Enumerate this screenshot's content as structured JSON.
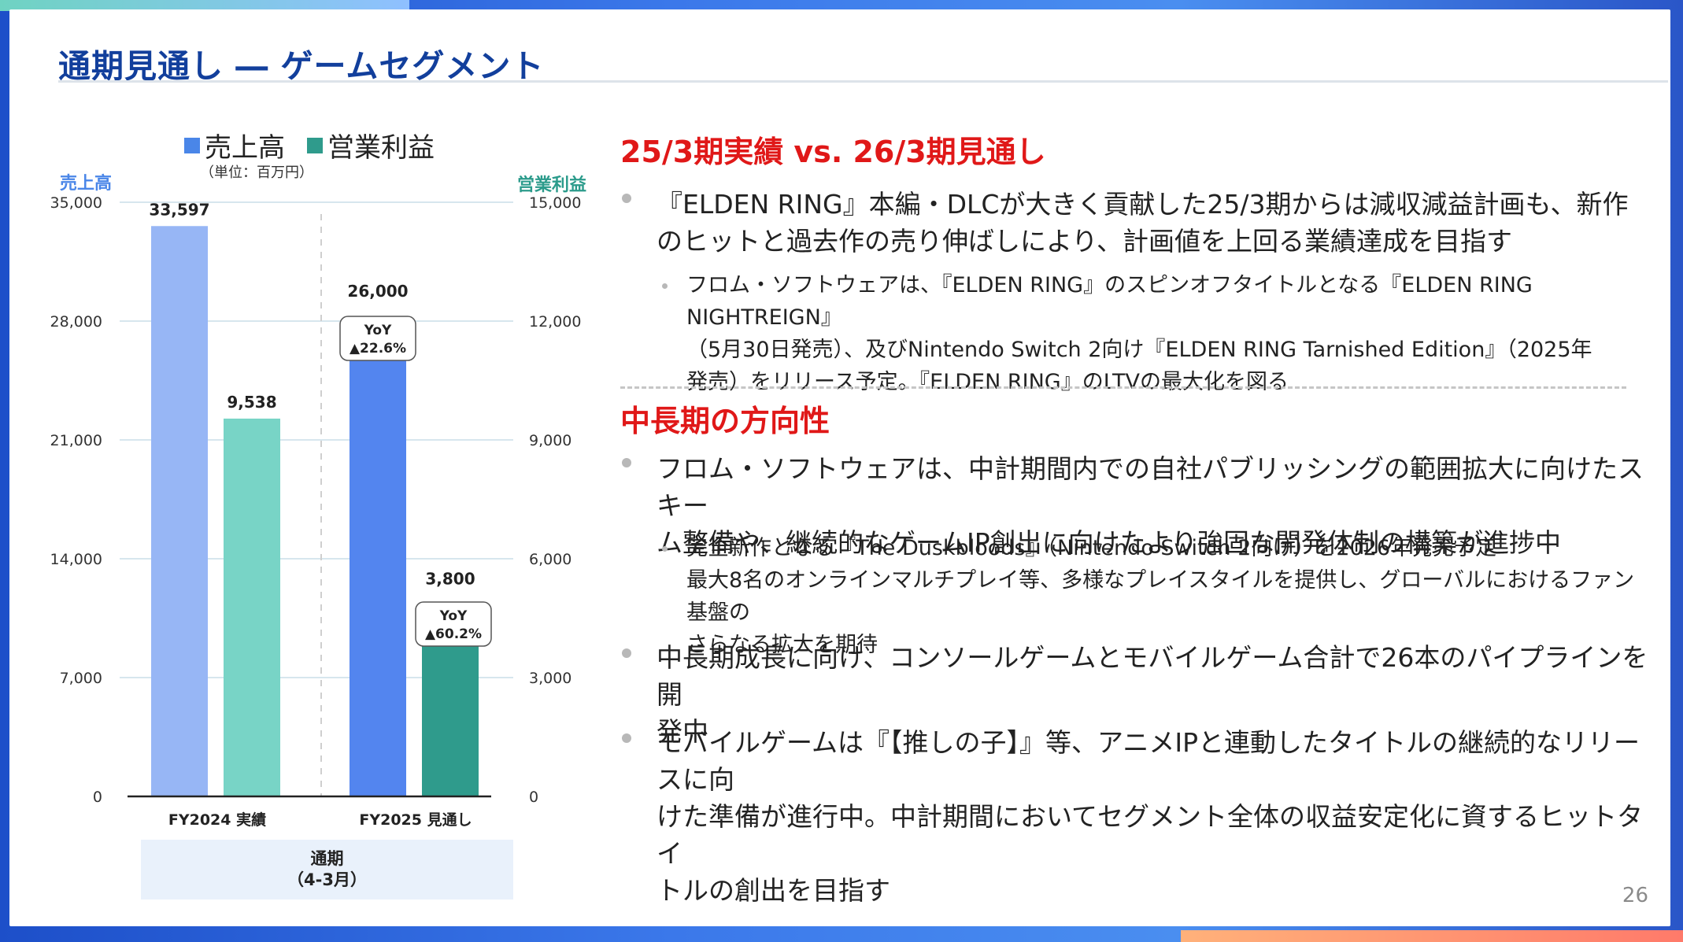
{
  "title": "通期見通し ― ゲームセグメント",
  "page_number": "26",
  "colors": {
    "sales_prev": "#97b6f5",
    "sales_fcst": "#5385ef",
    "op_prev": "#78d4c6",
    "op_fcst": "#2f9b8c",
    "title": "#123f9c",
    "heading_red": "#e01818"
  },
  "chart": {
    "legend_sales": "売上高",
    "legend_op": "営業利益",
    "unit": "（単位：百万円）",
    "left_axis_title": "売上高",
    "right_axis_title": "営業利益",
    "period_line1": "通期",
    "period_line2": "（4-3月）"
  },
  "chart_data": {
    "type": "bar",
    "categories": [
      "FY2024 実績",
      "FY2025 見通し"
    ],
    "series": [
      {
        "name": "売上高",
        "axis": "left",
        "values": [
          33597,
          26000
        ],
        "labels": [
          "33,597",
          "26,000"
        ]
      },
      {
        "name": "営業利益",
        "axis": "right",
        "values": [
          9538,
          3800
        ],
        "labels": [
          "9,538",
          "3,800"
        ]
      }
    ],
    "left_axis": {
      "ylim": [
        0,
        35000
      ],
      "ticks": [
        "0",
        "7,000",
        "14,000",
        "21,000",
        "28,000",
        "35,000"
      ]
    },
    "right_axis": {
      "ylim": [
        0,
        15000
      ],
      "ticks": [
        "0",
        "3,000",
        "6,000",
        "9,000",
        "12,000",
        "15,000"
      ]
    },
    "yoy": [
      {
        "series": "売上高",
        "line1": "YoY",
        "line2": "▲22.6%"
      },
      {
        "series": "営業利益",
        "line1": "YoY",
        "line2": "▲60.2%"
      }
    ],
    "grid": true
  },
  "section1": {
    "heading": "25/3期実績 vs. 26/3期見通し",
    "bullet1": [
      "『ELDEN RING』本編・DLCが大きく貢献した25/3期からは減収減益計画も、新作",
      "のヒットと過去作の売り伸ばしにより、計画値を上回る業績達成を目指す"
    ],
    "sub1": [
      "フロム・ソフトウェアは、『ELDEN RING』のスピンオフタイトルとなる『ELDEN RING NIGHTREIGN』",
      "（5月30日発売）、及びNintendo Switch 2向け『ELDEN RING Tarnished Edition』（2025年",
      "発売）をリリース予定。『ELDEN RING』のLTVの最大化を図る"
    ]
  },
  "section2": {
    "heading": "中長期の方向性",
    "bullet1": [
      "フロム・ソフトウェアは、中計期間内での自社パブリッシングの範囲拡大に向けたスキー",
      "ム整備や、継続的なゲームIP創出に向けたより強固な開発体制の構築が進捗中"
    ],
    "sub1": [
      "完全新作となる『The Duskbloods』（Nintendo Switch 2向け）を2026年発売予定",
      "最大8名のオンラインマルチプレイ等、多様なプレイスタイルを提供し、グローバルにおけるファン基盤の",
      "さらなる拡大を期待"
    ],
    "bullet2": [
      "中長期成長に向け、コンソールゲームとモバイルゲーム合計で26本のパイプラインを開",
      "発中"
    ],
    "bullet3": [
      "モバイルゲームは『【推しの子】』等、アニメIPと連動したタイトルの継続的なリリースに向",
      "けた準備が進行中。中計期間においてセグメント全体の収益安定化に資するヒットタイ",
      "トルの創出を目指す"
    ]
  }
}
